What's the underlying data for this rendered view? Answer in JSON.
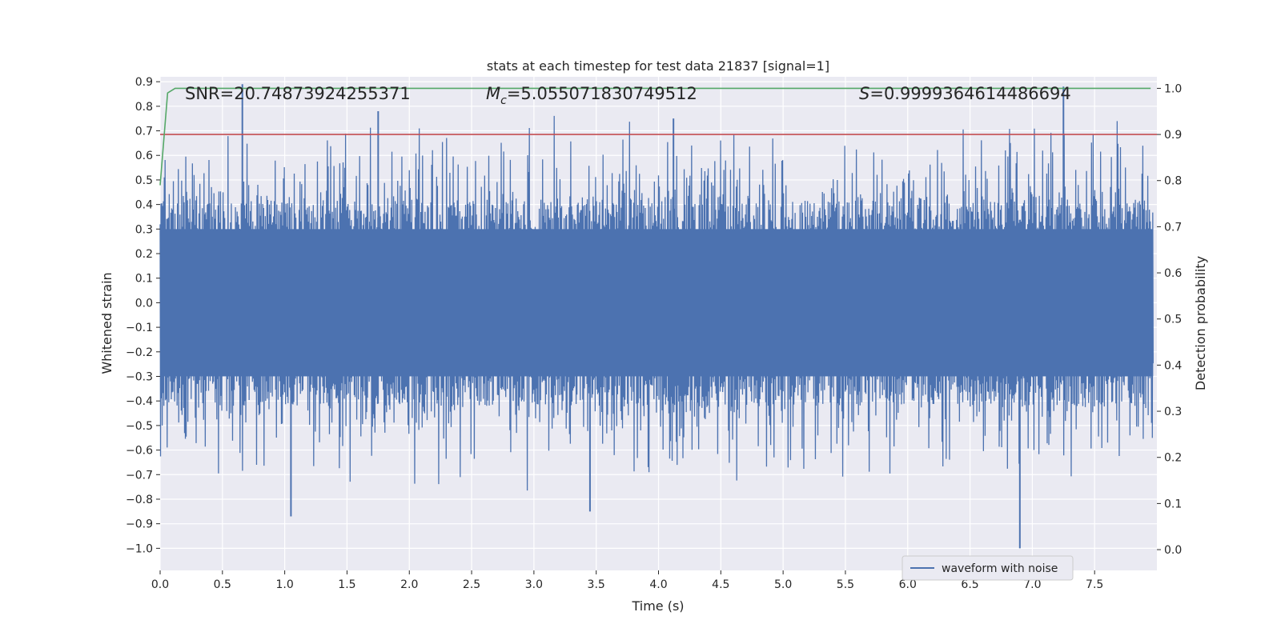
{
  "chart_data": {
    "type": "line",
    "title": "stats at each timestep for test data 21837 [signal=1]",
    "xlabel": "Time (s)",
    "ylabel": "Whitened strain",
    "y2label": "Detection probability",
    "xlim": [
      0.0,
      8.0
    ],
    "ylim": [
      -1.09,
      0.92
    ],
    "y2lim": [
      -0.045,
      1.025
    ],
    "xticks": [
      0.0,
      0.5,
      1.0,
      1.5,
      2.0,
      2.5,
      3.0,
      3.5,
      4.0,
      4.5,
      5.0,
      5.5,
      6.0,
      6.5,
      7.0,
      7.5
    ],
    "xtick_labels": [
      "0.0",
      "0.5",
      "1.0",
      "1.5",
      "2.0",
      "2.5",
      "3.0",
      "3.5",
      "4.0",
      "4.5",
      "5.0",
      "5.5",
      "6.0",
      "6.5",
      "7.0",
      "7.5"
    ],
    "yticks": [
      0.9,
      0.8,
      0.7,
      0.6,
      0.5,
      0.4,
      0.3,
      0.2,
      0.1,
      0.0,
      -0.1,
      -0.2,
      -0.3,
      -0.4,
      -0.5,
      -0.6,
      -0.7,
      -0.8,
      -0.9,
      -1.0
    ],
    "ytick_labels": [
      "0.9",
      "0.8",
      "0.7",
      "0.6",
      "0.5",
      "0.4",
      "0.3",
      "0.2",
      "0.1",
      "0.0",
      "−0.1",
      "−0.2",
      "−0.3",
      "−0.4",
      "−0.5",
      "−0.6",
      "−0.7",
      "−0.8",
      "−0.9",
      "−1.0"
    ],
    "y2ticks": [
      1.0,
      0.9,
      0.8,
      0.7,
      0.6,
      0.5,
      0.4,
      0.3,
      0.2,
      0.1,
      0.0
    ],
    "y2tick_labels": [
      "1.0",
      "0.9",
      "0.8",
      "0.7",
      "0.6",
      "0.5",
      "0.4",
      "0.3",
      "0.2",
      "0.1",
      "0.0"
    ],
    "annotations": {
      "snr": "SNR=20.74873924255371",
      "mc_symbol": "M",
      "mc_subscript": "c",
      "mc_value": "=5.055071830749512",
      "s_symbol": "S",
      "s_value": "=0.9999364614486694"
    },
    "series": [
      {
        "name": "waveform with noise",
        "axis": "left",
        "color": "#4c72b0",
        "description": "dense noisy whitened strain, bulk within about ±0.3 with spikes",
        "peaks": [
          {
            "x": 0.66,
            "y": 0.89
          },
          {
            "x": 1.75,
            "y": 0.78
          },
          {
            "x": 4.12,
            "y": 0.75
          },
          {
            "x": 7.25,
            "y": 0.88
          },
          {
            "x": 1.05,
            "y": -0.87
          },
          {
            "x": 3.45,
            "y": -0.85
          },
          {
            "x": 6.9,
            "y": -1.0
          }
        ]
      },
      {
        "name": "detection probability",
        "axis": "right",
        "color": "#55a868",
        "x": [
          0.0,
          0.06,
          0.12,
          7.95
        ],
        "y": [
          0.79,
          0.99,
          1.0,
          1.0
        ]
      },
      {
        "name": "threshold",
        "axis": "right",
        "color": "#c44e52",
        "x": [
          0.0,
          8.0
        ],
        "y": [
          0.9,
          0.9
        ]
      }
    ],
    "legend": {
      "location": "lower-right",
      "entries": [
        "waveform with noise"
      ]
    }
  }
}
